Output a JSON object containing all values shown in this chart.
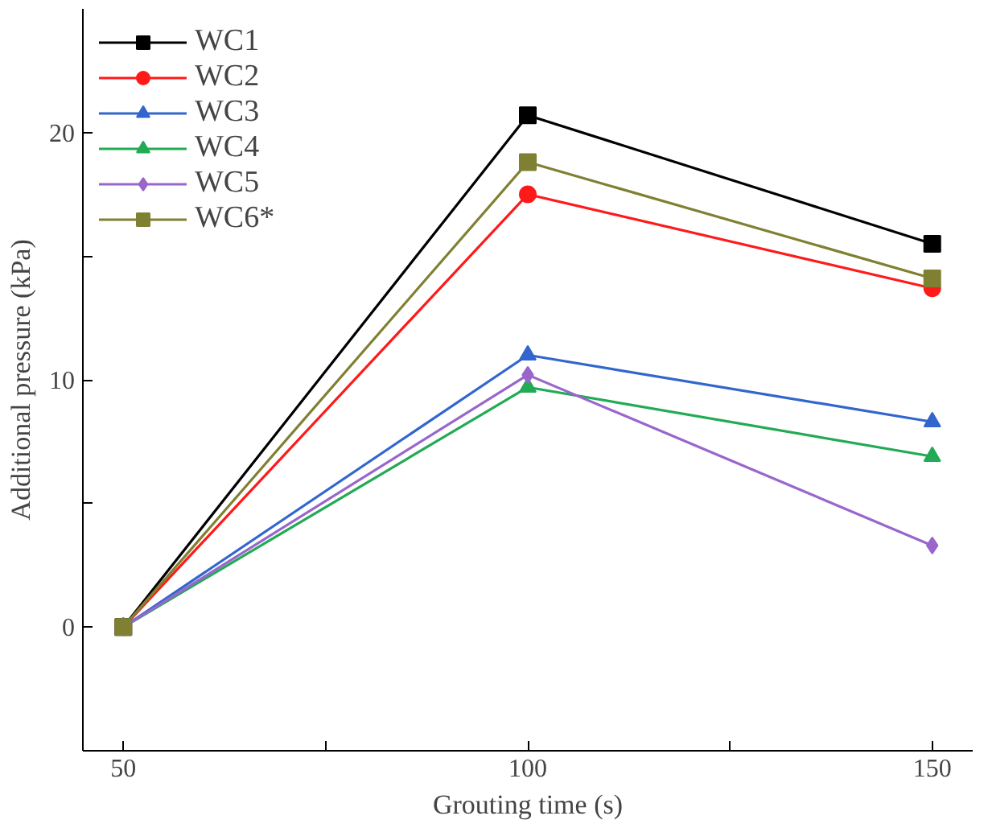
{
  "chart_data": {
    "type": "line",
    "xlabel": "Grouting time (s)",
    "ylabel": "Additional pressure (kPa)",
    "x": [
      50,
      100,
      150
    ],
    "xlim": [
      45,
      155
    ],
    "xticks": [
      50,
      {
        "value": 75,
        "label": null
      },
      100,
      {
        "value": 125,
        "label": null
      },
      150
    ],
    "ylim": [
      -5,
      25
    ],
    "yticks": [
      {
        "value": -5,
        "label": null
      },
      0,
      {
        "value": 5,
        "label": null
      },
      10,
      {
        "value": 15,
        "label": null
      },
      20
    ],
    "grid": false,
    "legend": "top left",
    "line_style": "solid",
    "series": [
      {
        "name": "WC1",
        "color": "#000000",
        "marker": "square",
        "values": [
          0,
          20.7,
          15.5
        ]
      },
      {
        "name": "WC2",
        "color": "#ff1a1a",
        "marker": "circle",
        "values": [
          0,
          17.5,
          13.7
        ]
      },
      {
        "name": "WC3",
        "color": "#3366cc",
        "marker": "triangle",
        "values": [
          0,
          11.0,
          8.3
        ]
      },
      {
        "name": "WC4",
        "color": "#22aa55",
        "marker": "triangle",
        "values": [
          0,
          9.7,
          6.9
        ]
      },
      {
        "name": "WC5",
        "color": "#9966cc",
        "marker": "diamond",
        "values": [
          0,
          10.2,
          3.3
        ]
      },
      {
        "name": "WC6*",
        "color": "#808033",
        "marker": "square",
        "values": [
          0,
          18.8,
          14.1
        ]
      }
    ]
  }
}
